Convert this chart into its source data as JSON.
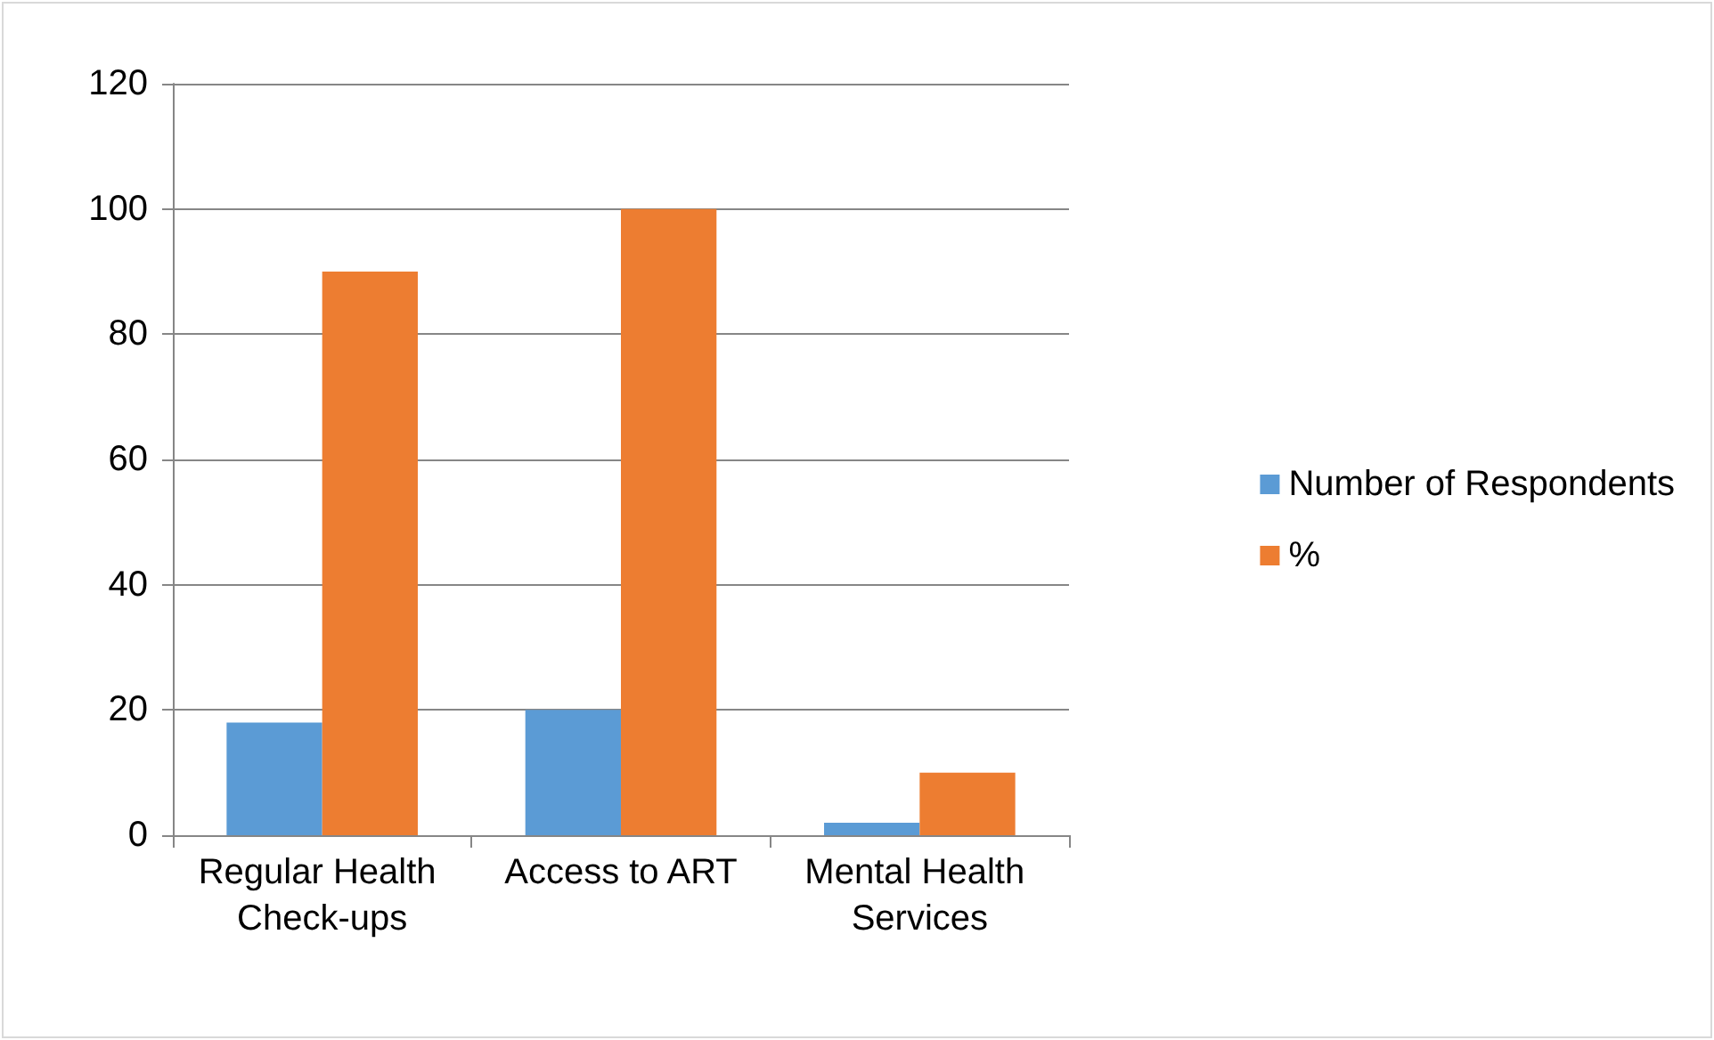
{
  "chart_data": {
    "type": "bar",
    "categories": [
      "Regular Health Check-ups",
      "Access to ART",
      "Mental Health Services"
    ],
    "series": [
      {
        "name": "Number of Respondents",
        "color": "#5b9bd5",
        "values": [
          18,
          20,
          2
        ]
      },
      {
        "name": "%",
        "color": "#ed7d31",
        "values": [
          90,
          100,
          10
        ]
      }
    ],
    "ylim": [
      0,
      120
    ],
    "yticks": [
      0,
      20,
      40,
      60,
      80,
      100,
      120
    ],
    "grid": "y",
    "legend": "right"
  }
}
